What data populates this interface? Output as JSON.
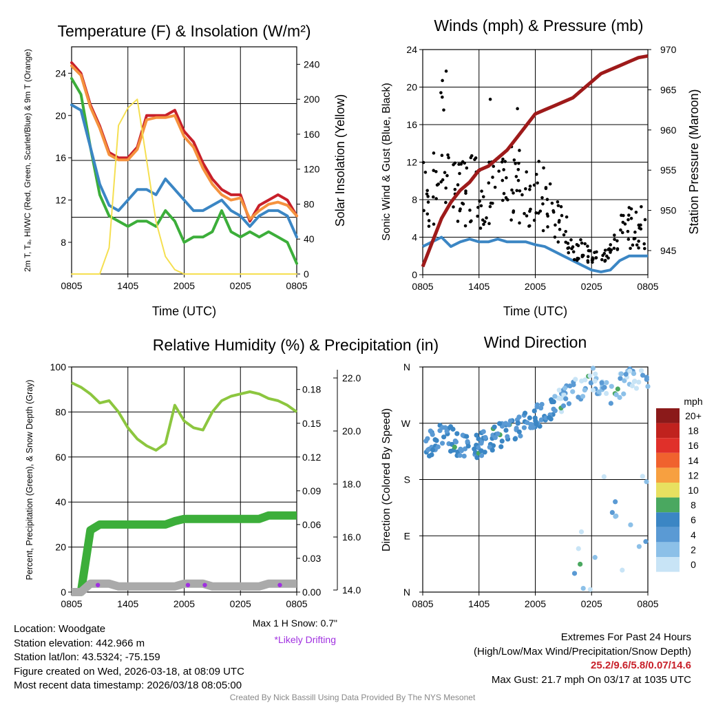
{
  "chart_data": [
    {
      "id": "temperature",
      "type": "line",
      "title": "Temperature (F) & Insolation (W/m²)",
      "xlabel": "Time (UTC)",
      "ylabel": "2m T, Tₐ, HI/WC (Red, Green, Scarlet/Blue) & 9m T (Orange)",
      "y2label": "Solar Insolation (Yellow)",
      "x_ticks": [
        "0805",
        "1405",
        "2005",
        "0205",
        "0805"
      ],
      "ylim": [
        5,
        26.5
      ],
      "y_ticks": [
        8,
        12,
        16,
        20,
        24
      ],
      "y2lim": [
        0,
        260
      ],
      "y2_ticks": [
        0,
        40,
        80,
        120,
        160,
        200,
        240
      ],
      "x_hours": [
        0,
        1,
        2,
        3,
        4,
        5,
        6,
        7,
        8,
        9,
        10,
        11,
        12,
        13,
        14,
        15,
        16,
        17,
        18,
        19,
        20,
        21,
        22,
        23,
        24
      ],
      "series": [
        {
          "name": "2m T",
          "color": "#c8202a",
          "values": [
            25,
            24,
            21,
            19,
            16.5,
            16,
            16,
            17,
            20,
            20,
            20,
            20.5,
            18.5,
            17.5,
            15.5,
            14,
            13,
            12.5,
            12.5,
            10,
            11.5,
            12,
            12.5,
            12,
            10.5
          ]
        },
        {
          "name": "9m T",
          "color": "#f5923e",
          "values": [
            24.7,
            23.8,
            20.8,
            18.8,
            16.3,
            15.8,
            15.8,
            16.8,
            19.6,
            19.8,
            19.8,
            20,
            18,
            17,
            15,
            13.5,
            12.5,
            12,
            12.2,
            10.2,
            11,
            11.6,
            11.8,
            11.5,
            10.5
          ]
        },
        {
          "name": "Dewpoint",
          "color": "#3cae3a",
          "values": [
            23.5,
            22,
            17,
            12.5,
            10.5,
            10,
            9.5,
            10,
            10,
            9.5,
            11,
            10,
            8,
            8.5,
            8.5,
            9,
            11,
            9,
            8.5,
            9,
            8.5,
            9,
            8.5,
            8,
            6
          ]
        },
        {
          "name": "Wind Chill",
          "color": "#3b86c4",
          "values": [
            21,
            20.5,
            17,
            13.5,
            11.5,
            11,
            12,
            13,
            13,
            12.5,
            14,
            13,
            12,
            11,
            11,
            11.5,
            12,
            11,
            10.5,
            9.5,
            10.5,
            11,
            11,
            10.5,
            8.5
          ]
        },
        {
          "name": "Solar Insolation",
          "color": "#f5df50",
          "axis": "y2",
          "values": [
            0,
            0,
            0,
            0,
            30,
            170,
            190,
            200,
            130,
            60,
            20,
            5,
            0,
            0,
            0,
            0,
            0,
            0,
            0,
            0,
            0,
            0,
            0,
            0,
            0
          ]
        }
      ]
    },
    {
      "id": "winds",
      "type": "line",
      "title": "Winds (mph) & Pressure (mb)",
      "xlabel": "Time (UTC)",
      "ylabel": "Sonic Wind & Gust (Blue, Black)",
      "y2label": "Station Pressure (Maroon)",
      "x_ticks": [
        "0805",
        "1405",
        "2005",
        "0205",
        "0805"
      ],
      "ylim": [
        0,
        24
      ],
      "y_ticks": [
        0,
        4,
        8,
        12,
        16,
        20,
        24
      ],
      "y2lim": [
        942,
        970
      ],
      "y2_ticks": [
        945,
        950,
        955,
        960,
        965,
        970
      ],
      "x_hours": [
        0,
        1,
        2,
        3,
        4,
        5,
        6,
        7,
        8,
        9,
        10,
        11,
        12,
        13,
        14,
        15,
        16,
        17,
        18,
        19,
        20,
        21,
        22,
        23,
        24
      ],
      "series": [
        {
          "name": "Sonic Wind",
          "color": "#3b86c4",
          "values": [
            3,
            3.5,
            4,
            3,
            3.5,
            3.8,
            3.5,
            3.5,
            3.8,
            3.5,
            3.5,
            3.5,
            3.2,
            3,
            2.5,
            2,
            1.5,
            1,
            0.5,
            0.3,
            0.5,
            1.5,
            2,
            2,
            2
          ]
        },
        {
          "name": "Gust",
          "color": "#000000",
          "marker": "dot",
          "values": [
            9,
            8,
            14,
            10,
            8,
            10,
            9,
            9,
            8,
            9,
            10,
            9,
            9,
            8,
            6,
            5,
            3,
            2.5,
            2,
            1.5,
            2.5,
            5,
            5,
            5,
            5
          ]
        },
        {
          "name": "Station Pressure",
          "color": "#9e1a1a",
          "axis": "y2",
          "values": [
            943,
            946,
            949,
            951,
            952.5,
            953.5,
            955,
            955.5,
            956.5,
            957.5,
            959,
            960.5,
            962,
            962.5,
            963,
            963.5,
            964,
            965,
            966,
            967,
            967.5,
            968,
            968.5,
            969,
            969.2
          ]
        }
      ],
      "max_gust_points": [
        {
          "hour": 2.5,
          "value": 21.7
        },
        {
          "hour": 2.1,
          "value": 20.7
        },
        {
          "hour": 7.2,
          "value": 18.7
        },
        {
          "hour": 10.1,
          "value": 17.7
        }
      ]
    },
    {
      "id": "humidity",
      "type": "line",
      "title": "Relative Humidity (%) & Precipitation (in)",
      "xlabel": "",
      "ylabel": "Percent, Precipitation (Green), & Snow Depth (Gray)",
      "x_ticks": [
        "0805",
        "1405",
        "2005",
        "0205",
        "0805"
      ],
      "ylim": [
        0,
        100
      ],
      "y_ticks": [
        0,
        20,
        40,
        60,
        80,
        100
      ],
      "y2_ticks": [
        "0.00",
        "0.03",
        "0.06",
        "0.09",
        "0.12",
        "0.15",
        "0.18"
      ],
      "y3_ticks": [
        "14.0",
        "16.0",
        "18.0",
        "20.0",
        "22.0"
      ],
      "x_hours": [
        0,
        1,
        2,
        3,
        4,
        5,
        6,
        7,
        8,
        9,
        10,
        11,
        12,
        13,
        14,
        15,
        16,
        17,
        18,
        19,
        20,
        21,
        22,
        23,
        24
      ],
      "series": [
        {
          "name": "Relative Humidity",
          "color": "#8cc63f",
          "values": [
            93,
            91,
            88,
            84,
            85,
            80,
            73,
            68,
            65,
            63,
            66,
            83,
            76,
            73,
            72,
            80,
            85,
            87,
            88,
            89,
            88,
            86,
            85,
            83,
            80
          ]
        },
        {
          "name": "Precipitation",
          "color": "#3cae3a",
          "values": [
            0,
            0,
            0.055,
            0.06,
            0.06,
            0.06,
            0.06,
            0.06,
            0.06,
            0.06,
            0.06,
            0.063,
            0.065,
            0.065,
            0.065,
            0.065,
            0.065,
            0.065,
            0.065,
            0.065,
            0.065,
            0.068,
            0.068,
            0.068,
            0.068
          ]
        },
        {
          "name": "Snow Depth",
          "color": "#aaaaaa",
          "values": [
            14,
            14,
            14.6,
            14.6,
            14.6,
            14.4,
            14.4,
            14.4,
            14.4,
            14.4,
            14.4,
            14.4,
            14.6,
            14.6,
            14.6,
            14.4,
            14.4,
            14.4,
            14.4,
            14.4,
            14.4,
            14.6,
            14.6,
            14.6,
            14.6
          ]
        }
      ],
      "snow_note": "Max 1 H Snow: 0.7\"",
      "drift_note": "*Likely Drifting"
    },
    {
      "id": "direction",
      "type": "scatter",
      "title": "Wind Direction",
      "ylabel": "Direction (Colored By Speed)",
      "x_ticks": [
        "0805",
        "1405",
        "2005",
        "0205",
        "0805"
      ],
      "y_ticks": [
        "N",
        "E",
        "S",
        "W",
        "N"
      ],
      "ylim": [
        0,
        360
      ],
      "legend_title": "mph",
      "legend_labels": [
        "20+",
        "18",
        "16",
        "14",
        "12",
        "10",
        "8",
        "6",
        "4",
        "2",
        "0"
      ],
      "legend_colors": [
        "#8b1a1a",
        "#c0221e",
        "#e0302a",
        "#f0622e",
        "#f7a040",
        "#e8e060",
        "#4aa860",
        "#3b86c4",
        "#5a9ad4",
        "#8cc0e8",
        "#c8e4f6"
      ],
      "points_hourly_dir": [
        230,
        240,
        250,
        245,
        235,
        230,
        235,
        240,
        250,
        255,
        265,
        275,
        280,
        290,
        300,
        310,
        320,
        330,
        340,
        330,
        320,
        330,
        340,
        345,
        340
      ]
    }
  ],
  "info": {
    "location": "Location: Woodgate",
    "elevation": "Station elevation: 442.966 m",
    "latlon": "Station lat/lon: 43.5324; -75.159",
    "created": "Figure created on Wed, 2026-03-18, at 08:09 UTC",
    "recent": "Most recent data timestamp: 2026/03/18 08:05:00"
  },
  "extremes": {
    "title": "Extremes For Past 24 Hours",
    "subtitle": "(High/Low/Max Wind/Precipitation/Snow Depth)",
    "values": "25.2/9.6/5.8/0.07/14.6",
    "max_gust": "Max Gust: 21.7 mph On 03/17 at 1035 UTC"
  },
  "credit": "Created By Nick Bassill Using Data Provided By The NYS Mesonet"
}
